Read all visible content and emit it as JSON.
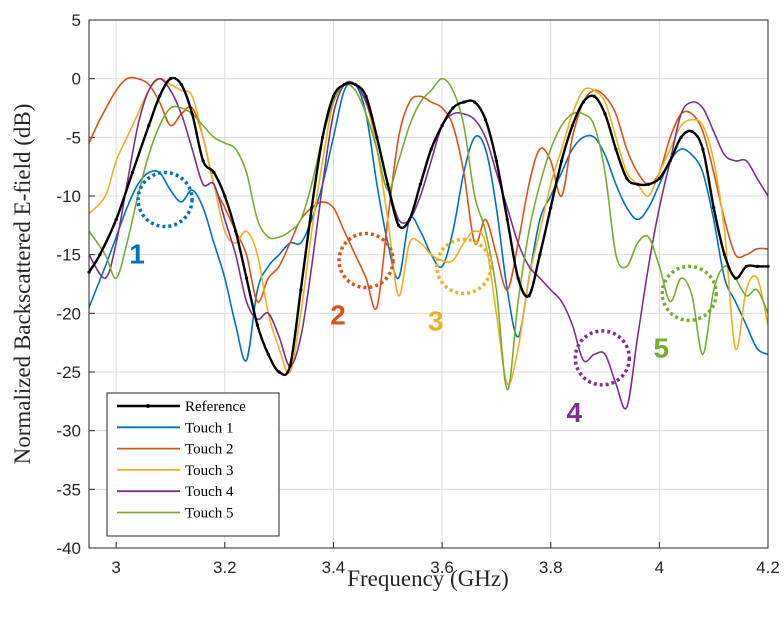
{
  "chart_data": {
    "type": "line",
    "title": "",
    "xlabel": "Frequency (GHz)",
    "ylabel": "Normalized Backscattered E-field (dB)",
    "xlim": [
      2.95,
      4.2
    ],
    "ylim": [
      -40,
      5
    ],
    "xticks": [
      3,
      3.2,
      3.4,
      3.6,
      3.8,
      4,
      4.2
    ],
    "xtick_labels": [
      "3",
      "3.2",
      "3.4",
      "3.6",
      "3.8",
      "4",
      "4.2"
    ],
    "yticks": [
      5,
      0,
      -5,
      -10,
      -15,
      -20,
      -25,
      -30,
      -35,
      -40
    ],
    "ytick_labels": [
      "5",
      "0",
      "-5",
      "-10",
      "-15",
      "-20",
      "-25",
      "-30",
      "-35",
      "-40"
    ],
    "grid": true,
    "legend_position": "bottom-left",
    "series": [
      {
        "name": "Reference",
        "color": "#000000",
        "marker": "dot",
        "x": [
          2.95,
          2.97,
          3.0,
          3.03,
          3.06,
          3.08,
          3.1,
          3.12,
          3.14,
          3.16,
          3.18,
          3.2,
          3.22,
          3.24,
          3.26,
          3.28,
          3.3,
          3.32,
          3.34,
          3.36,
          3.38,
          3.4,
          3.42,
          3.44,
          3.46,
          3.48,
          3.5,
          3.52,
          3.54,
          3.56,
          3.58,
          3.6,
          3.62,
          3.64,
          3.66,
          3.68,
          3.7,
          3.72,
          3.74,
          3.76,
          3.78,
          3.8,
          3.82,
          3.84,
          3.86,
          3.88,
          3.9,
          3.92,
          3.94,
          3.96,
          3.98,
          4.0,
          4.02,
          4.04,
          4.06,
          4.08,
          4.1,
          4.12,
          4.14,
          4.16,
          4.18,
          4.2
        ],
        "y": [
          -16.5,
          -15,
          -12,
          -8,
          -4,
          -1.5,
          0,
          -0.5,
          -3,
          -7,
          -8,
          -10,
          -13,
          -17,
          -21,
          -23.5,
          -25,
          -24.5,
          -18,
          -11,
          -5,
          -1.5,
          -0.5,
          -0.5,
          -1.5,
          -5,
          -9,
          -12.5,
          -12,
          -9,
          -6,
          -4,
          -2.5,
          -2,
          -2,
          -3.5,
          -7,
          -12,
          -17,
          -18.5,
          -15,
          -11,
          -7,
          -4,
          -2,
          -1.5,
          -3,
          -6,
          -8.5,
          -9,
          -9,
          -8.5,
          -7,
          -5,
          -4.5,
          -6,
          -11,
          -15,
          -17,
          -16,
          -16,
          -16
        ]
      },
      {
        "name": "Touch 1",
        "color": "#0072BD",
        "x": [
          2.95,
          2.98,
          3.0,
          3.02,
          3.04,
          3.06,
          3.08,
          3.1,
          3.12,
          3.14,
          3.16,
          3.18,
          3.2,
          3.22,
          3.24,
          3.26,
          3.28,
          3.3,
          3.32,
          3.34,
          3.36,
          3.38,
          3.4,
          3.42,
          3.44,
          3.46,
          3.48,
          3.5,
          3.52,
          3.54,
          3.56,
          3.58,
          3.6,
          3.62,
          3.64,
          3.66,
          3.68,
          3.7,
          3.72,
          3.74,
          3.76,
          3.78,
          3.8,
          3.82,
          3.84,
          3.86,
          3.88,
          3.9,
          3.92,
          3.94,
          3.96,
          3.98,
          4.0,
          4.02,
          4.04,
          4.06,
          4.08,
          4.1,
          4.12,
          4.14,
          4.16,
          4.18,
          4.2
        ],
        "y": [
          -19.5,
          -16,
          -13.5,
          -11,
          -9,
          -8,
          -8,
          -9.5,
          -10.5,
          -9.5,
          -11,
          -14,
          -17,
          -21,
          -24,
          -18,
          -16,
          -15,
          -14,
          -14,
          -12,
          -9,
          -5,
          -1,
          -0.5,
          -3,
          -9,
          -14,
          -17,
          -12,
          -13,
          -15,
          -16,
          -13,
          -8,
          -5,
          -6,
          -11,
          -18,
          -22,
          -17,
          -12,
          -10,
          -8,
          -6,
          -5,
          -5,
          -6.5,
          -9,
          -11,
          -12,
          -11,
          -9,
          -7,
          -6,
          -6.5,
          -8,
          -12,
          -17,
          -19,
          -21,
          -23,
          -23.5
        ]
      },
      {
        "name": "Touch 2",
        "color": "#D95319",
        "x": [
          2.95,
          2.97,
          3.0,
          3.02,
          3.04,
          3.06,
          3.08,
          3.1,
          3.12,
          3.14,
          3.16,
          3.18,
          3.2,
          3.22,
          3.24,
          3.26,
          3.28,
          3.3,
          3.32,
          3.34,
          3.36,
          3.38,
          3.4,
          3.42,
          3.44,
          3.46,
          3.48,
          3.5,
          3.52,
          3.54,
          3.56,
          3.58,
          3.6,
          3.62,
          3.64,
          3.66,
          3.68,
          3.7,
          3.72,
          3.74,
          3.76,
          3.78,
          3.8,
          3.82,
          3.84,
          3.86,
          3.88,
          3.9,
          3.92,
          3.94,
          3.96,
          3.98,
          4.0,
          4.02,
          4.04,
          4.06,
          4.08,
          4.1,
          4.12,
          4.14,
          4.16,
          4.18,
          4.2
        ],
        "y": [
          -5.5,
          -3.5,
          -1,
          0,
          0,
          -0.5,
          -2,
          -4,
          -3,
          -2.5,
          -5,
          -9,
          -11,
          -13,
          -15,
          -19,
          -17,
          -16,
          -14,
          -12,
          -11,
          -10.5,
          -11,
          -13,
          -15,
          -17,
          -19.5,
          -12,
          -5,
          -2,
          -1.5,
          -2,
          -2.5,
          -4,
          -8,
          -14,
          -12,
          -15,
          -18,
          -14,
          -9,
          -6,
          -7,
          -10,
          -5,
          -2,
          -1,
          -1.5,
          -3,
          -6,
          -8,
          -9,
          -8,
          -5,
          -3,
          -3,
          -4.5,
          -8,
          -12,
          -15,
          -15,
          -14.5,
          -14.5
        ]
      },
      {
        "name": "Touch 3",
        "color": "#EDB120",
        "x": [
          2.95,
          2.98,
          3.0,
          3.02,
          3.04,
          3.06,
          3.08,
          3.1,
          3.12,
          3.14,
          3.16,
          3.18,
          3.2,
          3.22,
          3.24,
          3.26,
          3.28,
          3.3,
          3.32,
          3.34,
          3.36,
          3.38,
          3.4,
          3.42,
          3.44,
          3.46,
          3.48,
          3.5,
          3.52,
          3.54,
          3.56,
          3.58,
          3.6,
          3.62,
          3.64,
          3.66,
          3.68,
          3.7,
          3.72,
          3.74,
          3.76,
          3.78,
          3.8,
          3.82,
          3.84,
          3.86,
          3.88,
          3.9,
          3.92,
          3.94,
          3.96,
          3.98,
          4.0,
          4.02,
          4.04,
          4.06,
          4.08,
          4.1,
          4.12,
          4.14,
          4.16,
          4.18,
          4.2
        ],
        "y": [
          -11.5,
          -10,
          -7,
          -5,
          -3,
          -1,
          0,
          -0.5,
          -1,
          -1.5,
          -5,
          -9,
          -13,
          -14,
          -13,
          -15,
          -20,
          -23,
          -25,
          -20,
          -13,
          -7,
          -2,
          -0.5,
          -0.5,
          -2,
          -6,
          -12,
          -18.5,
          -14,
          -14,
          -15,
          -15.5,
          -15.5,
          -14,
          -13,
          -14,
          -20,
          -26,
          -23,
          -17,
          -13,
          -9,
          -6,
          -3,
          -1,
          -1,
          -2,
          -5,
          -8,
          -9,
          -10,
          -8,
          -6,
          -4,
          -3.5,
          -4,
          -7,
          -13,
          -23,
          -18,
          -17,
          -21
        ]
      },
      {
        "name": "Touch 4",
        "color": "#7E2F8E",
        "x": [
          2.95,
          2.98,
          3.0,
          3.02,
          3.04,
          3.06,
          3.08,
          3.1,
          3.12,
          3.14,
          3.16,
          3.18,
          3.2,
          3.22,
          3.24,
          3.26,
          3.28,
          3.3,
          3.32,
          3.34,
          3.36,
          3.38,
          3.4,
          3.42,
          3.44,
          3.46,
          3.48,
          3.5,
          3.52,
          3.54,
          3.56,
          3.58,
          3.6,
          3.62,
          3.64,
          3.66,
          3.68,
          3.7,
          3.72,
          3.74,
          3.76,
          3.78,
          3.8,
          3.82,
          3.84,
          3.86,
          3.88,
          3.9,
          3.92,
          3.94,
          3.96,
          3.98,
          4.0,
          4.02,
          4.04,
          4.06,
          4.08,
          4.1,
          4.12,
          4.14,
          4.16,
          4.18,
          4.2
        ],
        "y": [
          -15,
          -17,
          -14,
          -9,
          -4,
          -1,
          0,
          -1,
          -3,
          -6,
          -9,
          -9,
          -12,
          -15,
          -19,
          -20.5,
          -20,
          -22,
          -24.5,
          -22,
          -16,
          -9,
          -3,
          -0.5,
          -0.5,
          -2,
          -5,
          -9,
          -12,
          -12,
          -10,
          -7,
          -4,
          -3,
          -3,
          -3.5,
          -5,
          -8,
          -11,
          -14,
          -16,
          -17,
          -18,
          -19,
          -21,
          -24,
          -23.5,
          -23.5,
          -26,
          -28,
          -22,
          -16,
          -11,
          -7,
          -3,
          -2,
          -2.5,
          -4.5,
          -6.5,
          -7,
          -7,
          -8.5,
          -10
        ]
      },
      {
        "name": "Touch 5",
        "color": "#77AC30",
        "x": [
          2.95,
          2.98,
          3.0,
          3.02,
          3.04,
          3.06,
          3.08,
          3.1,
          3.12,
          3.14,
          3.16,
          3.18,
          3.2,
          3.22,
          3.24,
          3.26,
          3.28,
          3.3,
          3.32,
          3.34,
          3.36,
          3.38,
          3.4,
          3.42,
          3.44,
          3.46,
          3.48,
          3.5,
          3.52,
          3.54,
          3.56,
          3.58,
          3.6,
          3.62,
          3.64,
          3.66,
          3.68,
          3.7,
          3.72,
          3.74,
          3.76,
          3.78,
          3.8,
          3.82,
          3.84,
          3.86,
          3.88,
          3.9,
          3.92,
          3.94,
          3.96,
          3.98,
          4.0,
          4.02,
          4.04,
          4.06,
          4.08,
          4.1,
          4.12,
          4.14,
          4.16,
          4.18,
          4.2
        ],
        "y": [
          -13,
          -15,
          -17,
          -14,
          -10,
          -6.5,
          -4,
          -2.5,
          -2.5,
          -3,
          -4,
          -5,
          -5.5,
          -6,
          -8,
          -12,
          -13.5,
          -13.5,
          -13,
          -12,
          -9,
          -5,
          -2,
          -0.5,
          -1,
          -3,
          -6,
          -9.5,
          -7,
          -4,
          -2,
          -1,
          0,
          -1,
          -4,
          -10,
          -13,
          -18,
          -26.5,
          -19,
          -13,
          -9,
          -6,
          -4,
          -3,
          -3,
          -4,
          -8,
          -15,
          -16,
          -14,
          -13.5,
          -16,
          -19,
          -17,
          -18.5,
          -23.5,
          -18,
          -16,
          -17,
          -18.5,
          -18,
          -20
        ]
      }
    ],
    "annotations": [
      {
        "label": "1",
        "color": "#0072BD",
        "x": 3.09,
        "y": -10.3
      },
      {
        "label": "2",
        "color": "#D95319",
        "x": 3.46,
        "y": -15.5
      },
      {
        "label": "3",
        "color": "#EDB120",
        "x": 3.64,
        "y": -16
      },
      {
        "label": "4",
        "color": "#7E2F8E",
        "x": 3.895,
        "y": -23.8
      },
      {
        "label": "5",
        "color": "#77AC30",
        "x": 4.055,
        "y": -18.3
      }
    ]
  }
}
